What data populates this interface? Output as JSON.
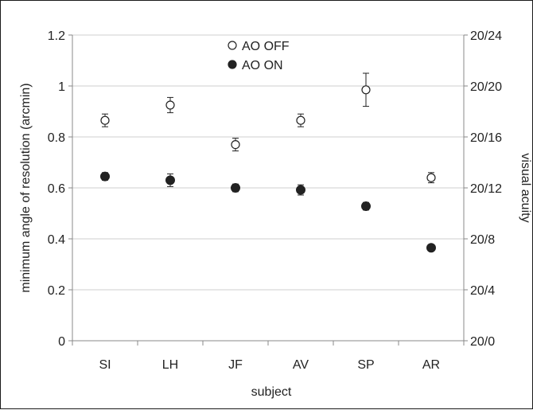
{
  "chart_data": {
    "type": "scatter",
    "categories": [
      "SI",
      "LH",
      "JF",
      "AV",
      "SP",
      "AR"
    ],
    "xlabel": "subject",
    "ylabel": "minimum angle of resolution (arcmin)",
    "y2label": "visual acuity",
    "ylim": [
      0,
      1.2
    ],
    "yticks": [
      "0",
      "0.2",
      "0.4",
      "0.6",
      "0.8",
      "1",
      "1.2"
    ],
    "y2ticks": [
      "20/0",
      "20/4",
      "20/8",
      "20/12",
      "20/16",
      "20/20",
      "20/24"
    ],
    "grid": true,
    "legend": "top-center",
    "series": [
      {
        "name": "AO OFF",
        "marker": "open-circle",
        "values": [
          0.865,
          0.925,
          0.77,
          0.865,
          0.985,
          0.64
        ],
        "errors": [
          0.025,
          0.03,
          0.025,
          0.025,
          0.065,
          0.02
        ]
      },
      {
        "name": "AO ON",
        "marker": "filled-circle",
        "values": [
          0.645,
          0.63,
          0.6,
          0.592,
          0.528,
          0.365
        ],
        "errors": [
          0.015,
          0.025,
          0.015,
          0.02,
          0.015,
          0.0
        ]
      }
    ],
    "colors": {
      "marker": "#222222",
      "grid": "#cfcfcf",
      "axis": "#888888"
    }
  }
}
